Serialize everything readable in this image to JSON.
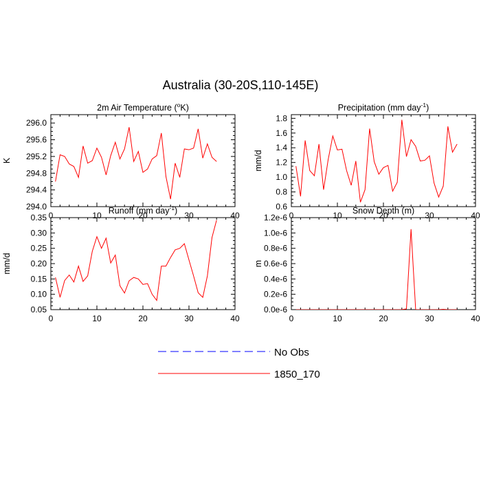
{
  "title": "Australia (30-20S,110-145E)",
  "colors": {
    "model": "#ff0000",
    "obs": "#0000ff"
  },
  "legend": [
    {
      "label": "No Obs",
      "style": "dashed",
      "color": "#0000ff"
    },
    {
      "label": "1850_170",
      "style": "solid",
      "color": "#ff0000"
    }
  ],
  "chart_data": [
    {
      "type": "line",
      "title": "2m Air Temperature (",
      "title_sup": "o",
      "title_end": "K)",
      "ylabel": "K",
      "xlim": [
        0,
        40
      ],
      "ylim": [
        294.0,
        296.2
      ],
      "xticks": [
        0,
        10,
        20,
        30,
        40
      ],
      "yticks": [
        294.0,
        294.4,
        294.8,
        295.2,
        295.6,
        296.0
      ],
      "yticklabels": [
        "294.0",
        "294.4",
        "294.8",
        "295.2",
        "295.6",
        "296.0"
      ],
      "series": [
        {
          "name": "1850_170",
          "x": [
            1,
            2,
            3,
            4,
            5,
            6,
            7,
            8,
            9,
            10,
            11,
            12,
            13,
            14,
            15,
            16,
            17,
            18,
            19,
            20,
            21,
            22,
            23,
            24,
            25,
            26,
            27,
            28,
            29,
            30,
            31,
            32,
            33,
            34,
            35,
            36
          ],
          "values": [
            294.6,
            295.24,
            295.2,
            295.02,
            294.96,
            294.7,
            295.45,
            295.04,
            295.1,
            295.4,
            295.18,
            294.76,
            295.22,
            295.54,
            295.14,
            295.38,
            295.9,
            295.08,
            295.32,
            294.82,
            294.9,
            295.14,
            295.22,
            295.76,
            294.72,
            294.18,
            295.04,
            294.7,
            295.38,
            295.36,
            295.4,
            295.86,
            295.16,
            295.5,
            295.18,
            295.08
          ]
        }
      ]
    },
    {
      "type": "line",
      "title": "Precipitation (mm day",
      "title_sup": "-1",
      "title_end": ")",
      "ylabel": "mm/d",
      "xlim": [
        0,
        40
      ],
      "ylim": [
        0.6,
        1.85
      ],
      "xticks": [
        0,
        10,
        20,
        30,
        40
      ],
      "yticks": [
        0.6,
        0.8,
        1.0,
        1.2,
        1.4,
        1.6,
        1.8
      ],
      "yticklabels": [
        "0.6",
        "0.8",
        "1.0",
        "1.2",
        "1.4",
        "1.6",
        "1.8"
      ],
      "series": [
        {
          "name": "1850_170",
          "x": [
            1,
            2,
            3,
            4,
            5,
            6,
            7,
            8,
            9,
            10,
            11,
            12,
            13,
            14,
            15,
            16,
            17,
            18,
            19,
            20,
            21,
            22,
            23,
            24,
            25,
            26,
            27,
            28,
            29,
            30,
            31,
            32,
            33,
            34,
            35,
            36
          ],
          "values": [
            1.15,
            0.74,
            1.5,
            1.09,
            1.02,
            1.45,
            0.83,
            1.24,
            1.56,
            1.37,
            1.38,
            1.09,
            0.89,
            1.22,
            0.66,
            0.83,
            1.66,
            1.21,
            1.04,
            1.13,
            1.16,
            0.81,
            0.93,
            1.78,
            1.28,
            1.51,
            1.42,
            1.22,
            1.23,
            1.29,
            0.92,
            0.73,
            0.88,
            1.69,
            1.34,
            1.45
          ]
        }
      ]
    },
    {
      "type": "line",
      "title": "Runoff (mm day",
      "title_sup": "-1",
      "title_end": ")",
      "ylabel": "mm/d",
      "xlim": [
        0,
        40
      ],
      "ylim": [
        0.05,
        0.35
      ],
      "xticks": [
        0,
        10,
        20,
        30,
        40
      ],
      "yticks": [
        0.05,
        0.1,
        0.15,
        0.2,
        0.25,
        0.3,
        0.35
      ],
      "yticklabels": [
        "0.05",
        "0.10",
        "0.15",
        "0.20",
        "0.25",
        "0.30",
        "0.35"
      ],
      "series": [
        {
          "name": "1850_170",
          "x": [
            1,
            2,
            3,
            4,
            5,
            6,
            7,
            8,
            9,
            10,
            11,
            12,
            13,
            14,
            15,
            16,
            17,
            18,
            19,
            20,
            21,
            22,
            23,
            24,
            25,
            26,
            27,
            28,
            29,
            30,
            31,
            32,
            33,
            34,
            35,
            36
          ],
          "values": [
            0.155,
            0.09,
            0.145,
            0.163,
            0.14,
            0.192,
            0.142,
            0.16,
            0.24,
            0.288,
            0.25,
            0.283,
            0.202,
            0.228,
            0.128,
            0.104,
            0.144,
            0.155,
            0.15,
            0.132,
            0.135,
            0.1,
            0.08,
            0.192,
            0.192,
            0.22,
            0.245,
            0.25,
            0.265,
            0.212,
            0.16,
            0.105,
            0.09,
            0.16,
            0.285,
            0.342
          ]
        }
      ]
    },
    {
      "type": "line",
      "title": "Snow Depth (m)",
      "title_sup": "",
      "title_end": "",
      "ylabel": "m",
      "xlim": [
        0,
        40
      ],
      "ylim": [
        0,
        1.2e-06
      ],
      "xticks": [
        0,
        10,
        20,
        30,
        40
      ],
      "yticks": [
        0,
        2e-07,
        4e-07,
        6e-07,
        8e-07,
        1e-06,
        1.2e-06
      ],
      "yticklabels": [
        "0.0e-6",
        "0.2e-6",
        "0.4e-6",
        "0.6e-6",
        "0.8e-6",
        "1.0e-6",
        "1.2e-6"
      ],
      "series": [
        {
          "name": "1850_170",
          "x": [
            1,
            2,
            3,
            4,
            5,
            6,
            7,
            8,
            9,
            10,
            11,
            12,
            13,
            14,
            15,
            16,
            17,
            18,
            19,
            20,
            21,
            22,
            23,
            24,
            25,
            26,
            27,
            28,
            29,
            30,
            31,
            32,
            33,
            34,
            35,
            36
          ],
          "values": [
            0,
            0,
            0,
            0,
            0,
            0,
            0,
            0,
            0,
            0,
            0,
            0,
            0,
            0,
            0,
            0,
            0,
            0,
            0,
            0,
            0,
            0,
            0,
            0,
            1e-08,
            1.05e-06,
            0,
            0,
            0,
            0,
            0,
            0,
            5e-09,
            0,
            0,
            0
          ]
        }
      ]
    }
  ]
}
